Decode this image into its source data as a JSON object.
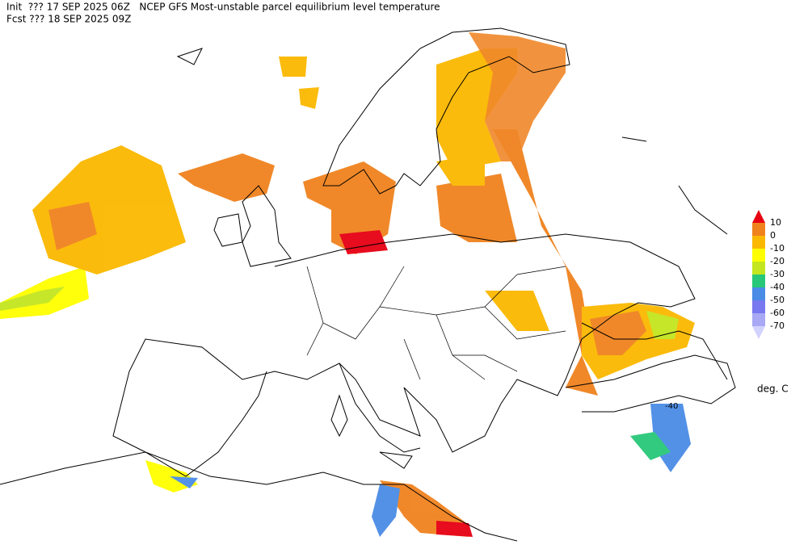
{
  "header": {
    "init": "Init  ??? 17 SEP 2025 06Z   NCEP GFS Most-unstable parcel equilibrium level temperature",
    "fcst": "Fcst ??? 18 SEP 2025 09Z"
  },
  "map": {
    "contour_label": "-40"
  },
  "legend": {
    "levels": [
      10,
      0,
      -10,
      -20,
      -30,
      -40,
      -50,
      -60,
      -70
    ],
    "colors": [
      "#e60012",
      "#f0821e",
      "#fbb800",
      "#ffff00",
      "#c3e61e",
      "#28c878",
      "#4a8ce6",
      "#7878f0",
      "#a8a8f5",
      "#d2d2ff"
    ],
    "unit": "deg. C"
  }
}
